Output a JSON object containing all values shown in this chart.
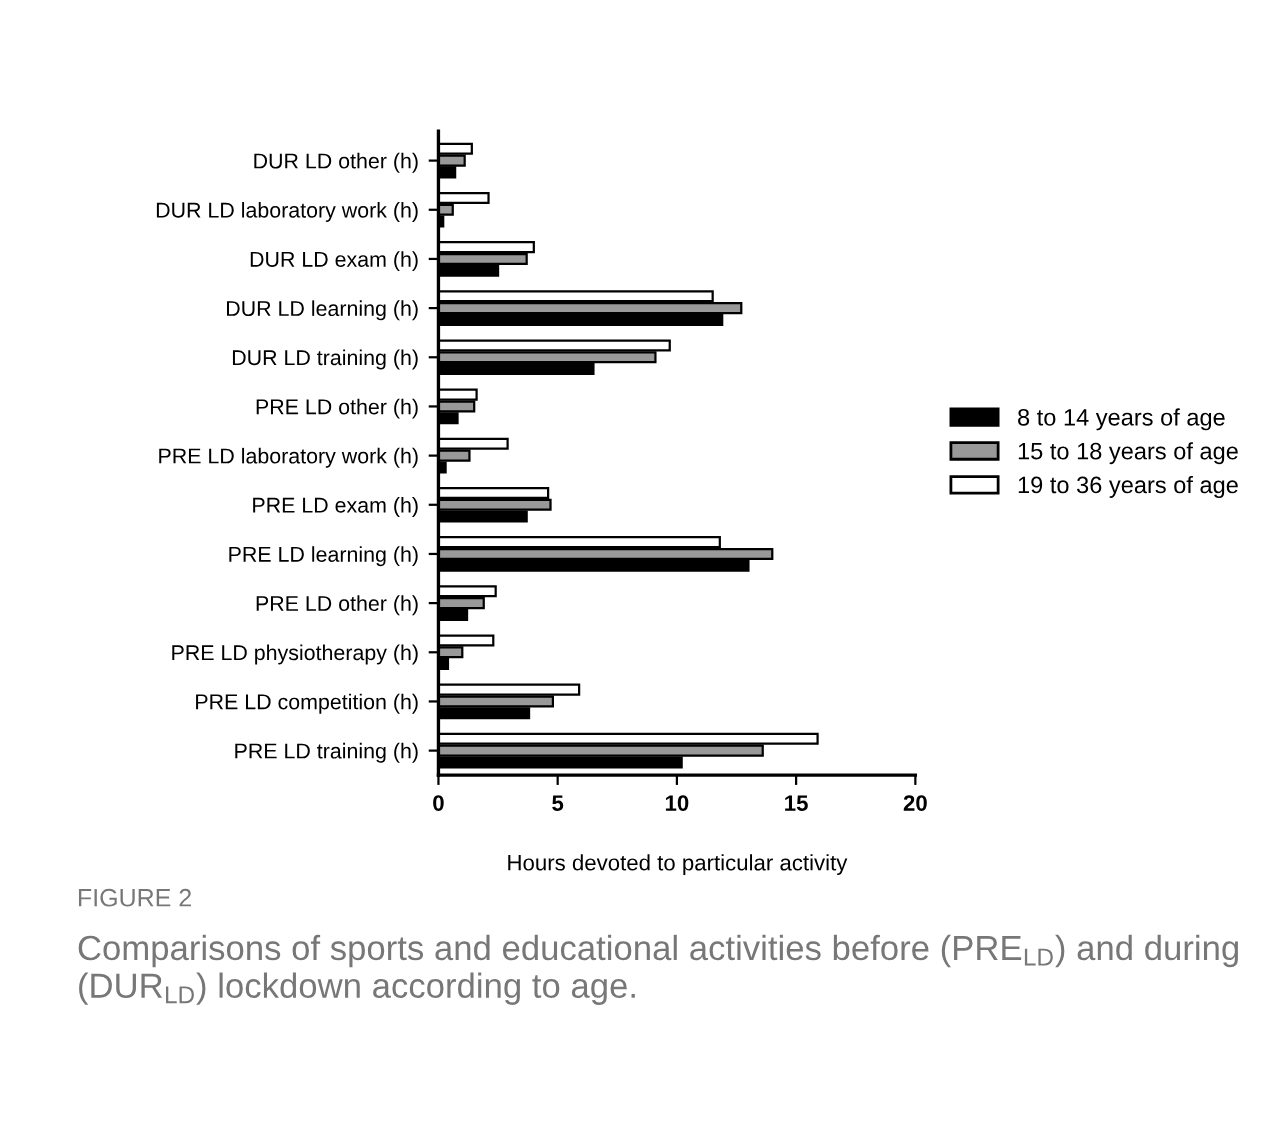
{
  "chart_data": {
    "type": "bar",
    "orientation": "horizontal",
    "xlabel": "Hours devoted to particular activity",
    "categories": [
      "DUR LD other (h)",
      "DUR LD laboratory work (h)",
      "DUR LD exam (h)",
      "DUR LD learning (h)",
      "DUR LD training (h)",
      "PRE LD other (h)",
      "PRE LD laboratory work (h)",
      "PRE LD exam (h)",
      "PRE LD learning (h)",
      "PRE LD other (h)",
      "PRE LD physiotherapy (h)",
      "PRE LD competition (h)",
      "PRE LD training (h)"
    ],
    "series": [
      {
        "name": "8 to 14 years of age",
        "color": "#000000",
        "values": [
          0.7,
          0.2,
          2.5,
          11.9,
          6.5,
          0.8,
          0.3,
          3.7,
          13.0,
          1.2,
          0.4,
          3.8,
          10.2
        ]
      },
      {
        "name": "15 to 18 years of age",
        "color": "#999999",
        "values": [
          1.1,
          0.6,
          3.7,
          12.7,
          9.1,
          1.5,
          1.3,
          4.7,
          14.0,
          1.9,
          1.0,
          4.8,
          13.6
        ]
      },
      {
        "name": "19 to 36 years of age",
        "color": "#ffffff",
        "values": [
          1.4,
          2.1,
          4.0,
          11.5,
          9.7,
          1.6,
          2.9,
          4.6,
          11.8,
          2.4,
          2.3,
          5.9,
          15.9
        ]
      }
    ],
    "xlim": [
      0,
      20
    ],
    "xticks": [
      0,
      5,
      10,
      15,
      20
    ],
    "grid": false,
    "legend": "right",
    "annotations": [
      "FIGURE 2",
      "Comparisons of sports and educational activities before (PRE$_{LD}$) and during (DUR$_{LD}$) lockdown according to age."
    ]
  }
}
